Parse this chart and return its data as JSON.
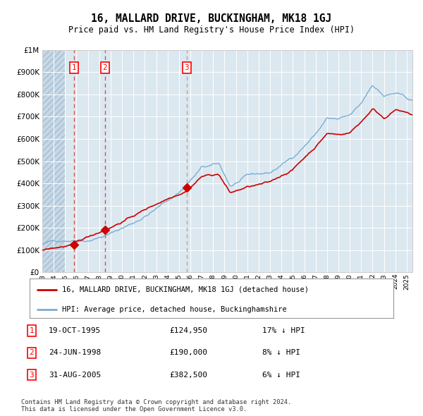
{
  "title": "16, MALLARD DRIVE, BUCKINGHAM, MK18 1GJ",
  "subtitle": "Price paid vs. HM Land Registry's House Price Index (HPI)",
  "legend_property": "16, MALLARD DRIVE, BUCKINGHAM, MK18 1GJ (detached house)",
  "legend_hpi": "HPI: Average price, detached house, Buckinghamshire",
  "footer": "Contains HM Land Registry data © Crown copyright and database right 2024.\nThis data is licensed under the Open Government Licence v3.0.",
  "transactions": [
    {
      "num": 1,
      "date": "19-OCT-1995",
      "price": 124950,
      "pct": "17%",
      "dir": "↓"
    },
    {
      "num": 2,
      "date": "24-JUN-1998",
      "price": 190000,
      "pct": "8%",
      "dir": "↓"
    },
    {
      "num": 3,
      "date": "31-AUG-2005",
      "price": 382500,
      "pct": "6%",
      "dir": "↓"
    }
  ],
  "transaction_years": [
    1995.8,
    1998.5,
    2005.67
  ],
  "transaction_prices": [
    124950,
    190000,
    382500
  ],
  "property_line_color": "#cc0000",
  "hpi_line_color": "#7aaed6",
  "marker_color": "#cc0000",
  "plot_bg": "#dce8f0",
  "ylim": [
    0,
    1000000
  ],
  "yticks": [
    0,
    100000,
    200000,
    300000,
    400000,
    500000,
    600000,
    700000,
    800000,
    900000,
    1000000
  ],
  "xmin": 1993,
  "xmax": 2025.5,
  "hpi_control_years": [
    1993,
    1995,
    1997,
    1999,
    2001,
    2003,
    2005,
    2007,
    2008.5,
    2009.5,
    2011,
    2013,
    2015,
    2017,
    2018,
    2019,
    2020,
    2021,
    2022,
    2023,
    2024,
    2025.5
  ],
  "hpi_control_values": [
    128000,
    148000,
    160000,
    192000,
    240000,
    305000,
    380000,
    490000,
    500000,
    400000,
    440000,
    450000,
    520000,
    630000,
    700000,
    690000,
    700000,
    750000,
    840000,
    790000,
    800000,
    760000
  ],
  "prop_control_years": [
    1993,
    1995.8,
    1998.5,
    2005.67,
    2007,
    2008.5,
    2009.5,
    2011,
    2013,
    2015,
    2017,
    2018,
    2019,
    2020,
    2021,
    2022,
    2023,
    2024,
    2025.5
  ],
  "prop_control_values": [
    100000,
    124950,
    190000,
    382500,
    450000,
    460000,
    375000,
    400000,
    415000,
    475000,
    580000,
    640000,
    635000,
    645000,
    695000,
    755000,
    715000,
    755000,
    725000
  ]
}
